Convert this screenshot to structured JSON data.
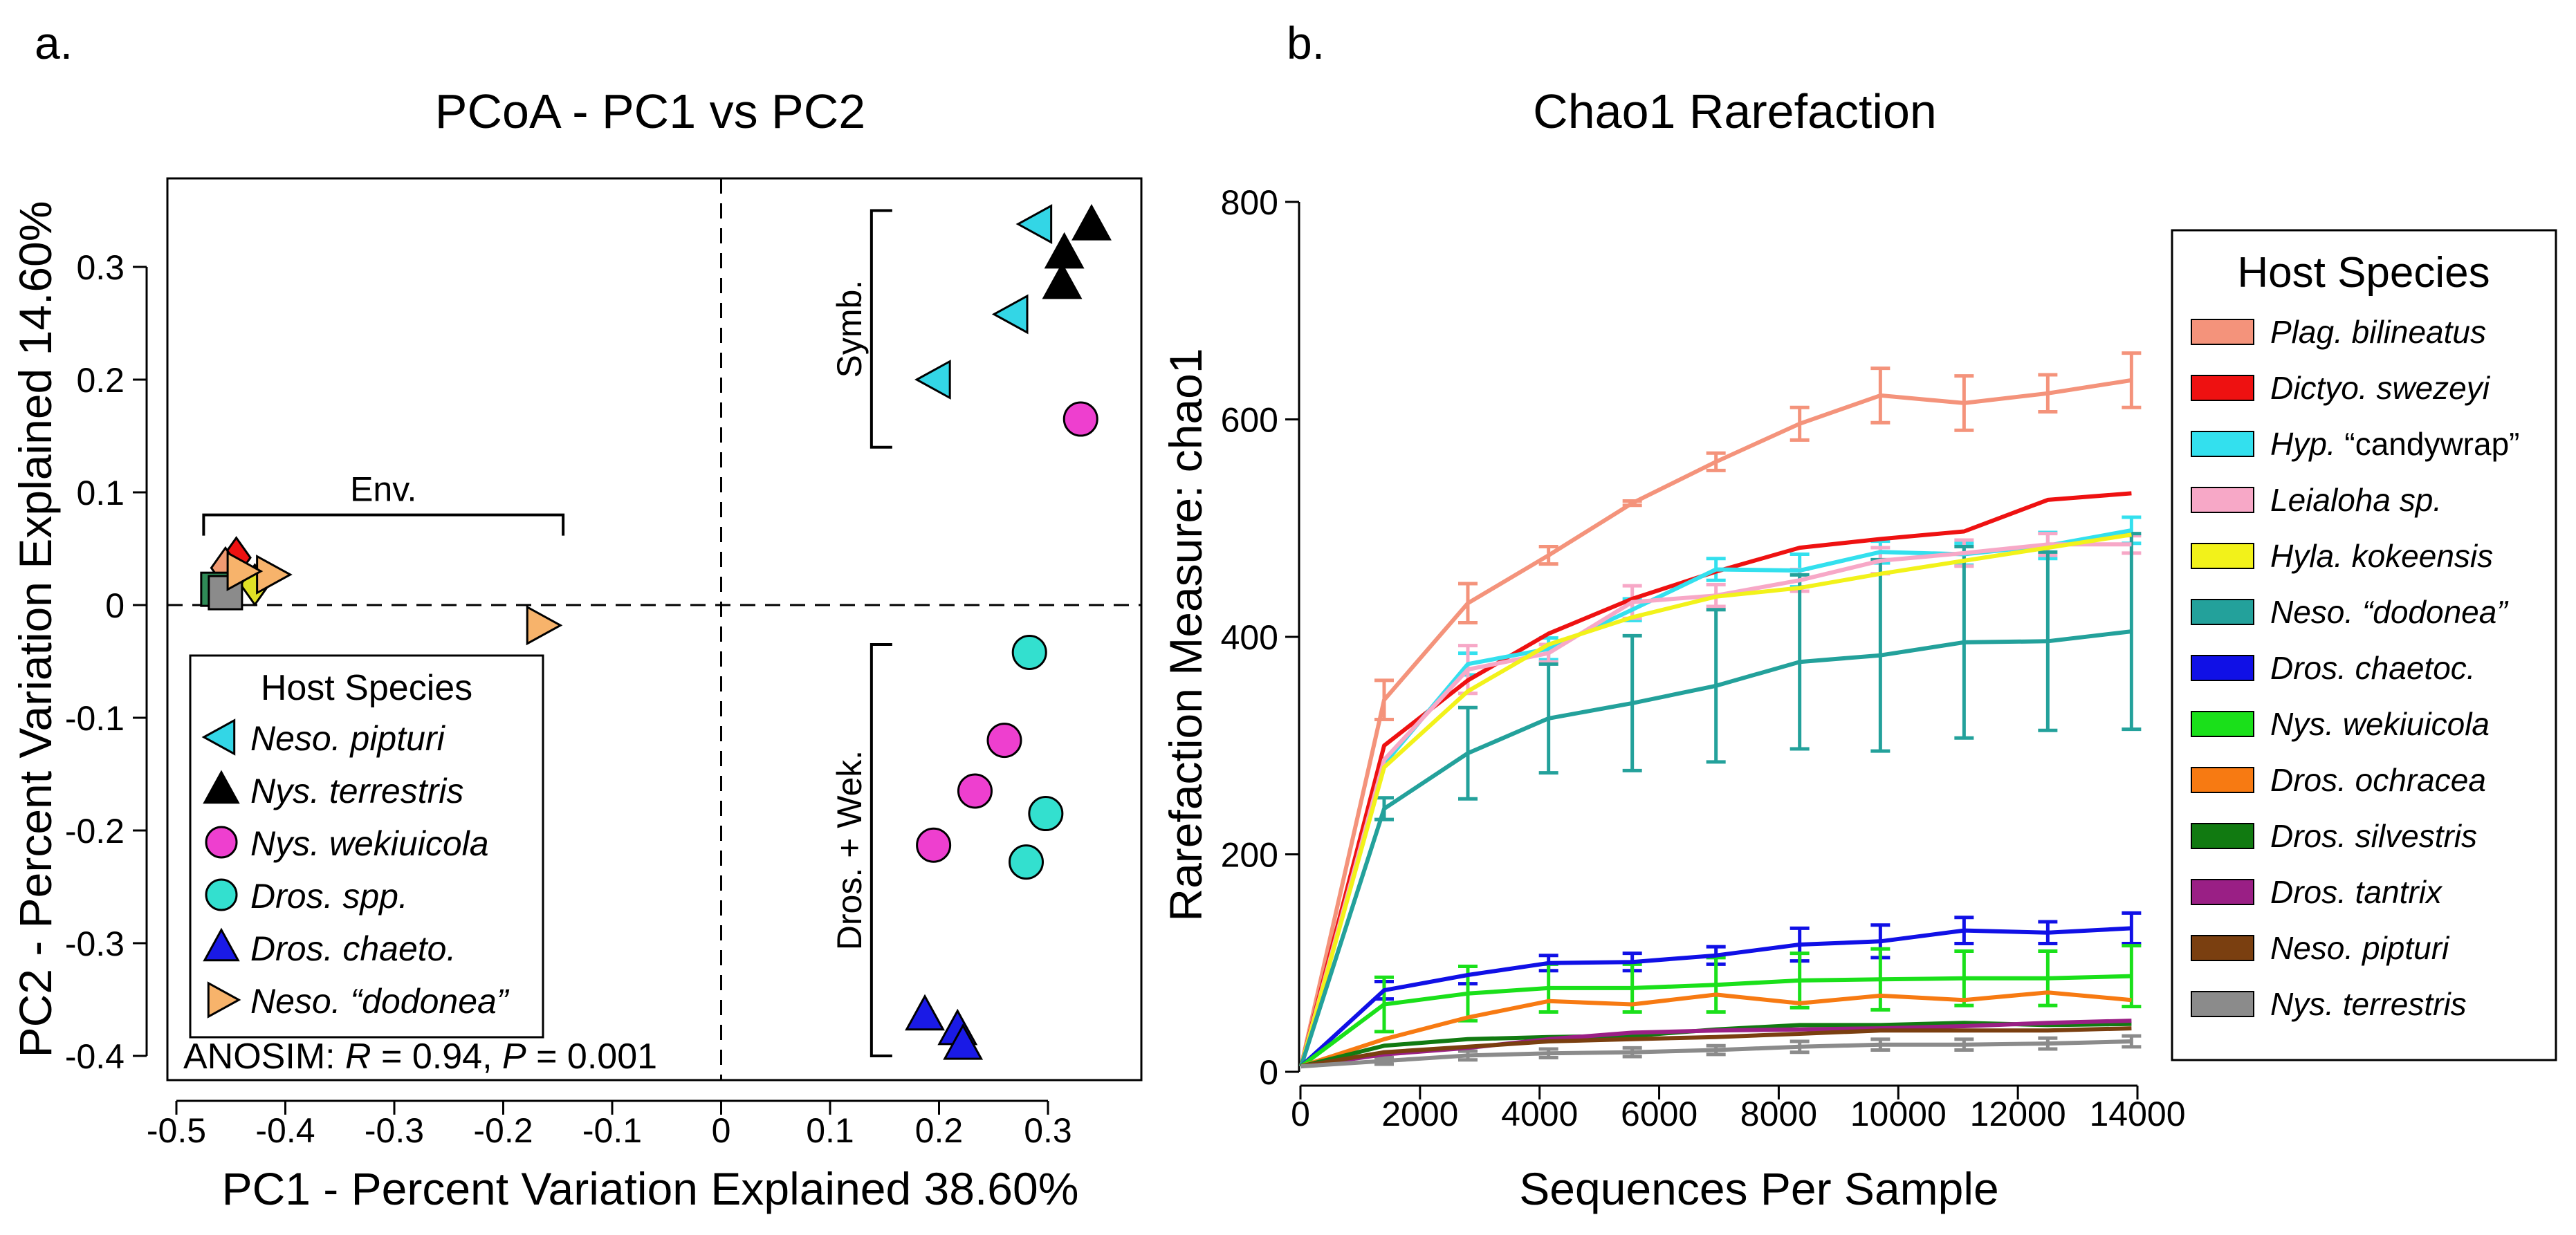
{
  "panels": {
    "a": {
      "letter": "a."
    },
    "b": {
      "letter": "b."
    }
  },
  "chart_data": [
    {
      "type": "scatter",
      "title": "PCoA - PC1 vs PC2",
      "xlabel": "PC1 - Percent Variation Explained 38.60%",
      "ylabel": "PC2 - Percent Variation Explained 14.60%",
      "xlim": [
        -0.5,
        0.38
      ],
      "ylim": [
        -0.41,
        0.37
      ],
      "xticks": [
        -0.5,
        -0.4,
        -0.3,
        -0.2,
        -0.1,
        0,
        0.1,
        0.2,
        0.3
      ],
      "xtick_labels": [
        "-0.5",
        "-0.4",
        "-0.3",
        "-0.2",
        "-0.1",
        "0",
        "0.1",
        "0.2",
        "0.3"
      ],
      "yticks": [
        -0.4,
        -0.3,
        -0.2,
        -0.1,
        0,
        0.1,
        0.2,
        0.3
      ],
      "ytick_labels": [
        "-0.4",
        "-0.3",
        "-0.2",
        "-0.1",
        "0",
        "0.1",
        "0.2",
        "0.3"
      ],
      "reference_lines": {
        "x": 0,
        "y": 0,
        "style": "dashed"
      },
      "brackets": [
        {
          "label": "Env.",
          "orientation": "horizontal",
          "from": -0.475,
          "to": -0.145,
          "at": 0.08
        },
        {
          "label": "Symb.",
          "orientation": "vertical",
          "from": 0.14,
          "to": 0.35,
          "at": 0.138
        },
        {
          "label": "Dros. + Wek.",
          "orientation": "vertical",
          "from": -0.4,
          "to": -0.035,
          "at": 0.138
        }
      ],
      "legend": {
        "title": "Host Species",
        "placement": "bottom-left"
      },
      "series": [
        {
          "name": "Neso. pipturi",
          "marker": "triangle-left",
          "color": "#33d6e6",
          "x": [
            0.29,
            0.268,
            0.197
          ],
          "y": [
            0.338,
            0.258,
            0.2
          ]
        },
        {
          "name": "Nys. terrestris",
          "marker": "triangle-up",
          "color": "#000000",
          "x": [
            0.34,
            0.315,
            0.313
          ],
          "y": [
            0.337,
            0.312,
            0.285
          ]
        },
        {
          "name": "Nys. wekiuicola",
          "marker": "circle",
          "color": "#ee3fcf",
          "x": [
            0.33,
            0.26,
            0.233,
            0.195
          ],
          "y": [
            0.165,
            -0.12,
            -0.165,
            -0.213
          ]
        },
        {
          "name": "Dros. spp.",
          "marker": "circle",
          "color": "#33e0cf",
          "x": [
            0.283,
            0.298,
            0.28
          ],
          "y": [
            -0.042,
            -0.185,
            -0.228
          ]
        },
        {
          "name": "Dros. chaeto.",
          "marker": "triangle-up",
          "color": "#1a1ae6",
          "x": [
            0.187,
            0.217,
            0.222
          ],
          "y": [
            -0.364,
            -0.377,
            -0.39
          ]
        },
        {
          "name": "Neso. “dodonea”",
          "marker": "triangle-right",
          "color": "#f7b36b",
          "x": [
            -0.165,
            -0.413,
            -0.44
          ],
          "y": [
            -0.018,
            0.027,
            0.03
          ]
        }
      ],
      "env_cluster": [
        {
          "marker": "diamond",
          "color": "#ee1111",
          "x": -0.445,
          "y": 0.042
        },
        {
          "marker": "diamond",
          "color": "#f09a72",
          "x": -0.455,
          "y": 0.033
        },
        {
          "marker": "diamond",
          "color": "#e0e026",
          "x": -0.428,
          "y": 0.018
        },
        {
          "marker": "square",
          "color": "#2f8b57",
          "x": -0.462,
          "y": 0.014
        },
        {
          "marker": "square",
          "color": "#8b8b8b",
          "x": -0.455,
          "y": 0.011
        }
      ],
      "annotation": {
        "prefix": "ANOSIM: ",
        "r_label": "R",
        "r_text": " = 0.94, ",
        "p_label": "P",
        "p_text": " = 0.001"
      }
    },
    {
      "type": "line",
      "title": "Chao1 Rarefaction",
      "xlabel": "Sequences Per Sample",
      "ylabel": "Rarefaction Measure: chao1",
      "xlim": [
        0,
        14000
      ],
      "ylim": [
        0,
        800
      ],
      "xticks": [
        0,
        2000,
        4000,
        6000,
        8000,
        10000,
        12000,
        14000
      ],
      "xtick_labels": [
        "0",
        "2000",
        "4000",
        "6000",
        "8000",
        "10000",
        "12000",
        "14000"
      ],
      "yticks": [
        0,
        200,
        400,
        600,
        800
      ],
      "ytick_labels": [
        "0",
        "200",
        "400",
        "600",
        "800"
      ],
      "x": [
        10,
        1400,
        2800,
        4150,
        5550,
        6950,
        8350,
        9700,
        11100,
        12500,
        13900
      ],
      "legend": {
        "title": "Host Species",
        "placement": "right"
      },
      "series": [
        {
          "name": "Plag. bilineatus",
          "prefix": "Plag.",
          "suffix": " bilineatus",
          "italic_suffix": true,
          "color": "#f4937b",
          "values": [
            5,
            342,
            431,
            475,
            523,
            561,
            596,
            622,
            615,
            624,
            636
          ],
          "err": [
            0,
            18,
            18,
            8,
            2,
            8,
            15,
            25,
            25,
            17,
            25
          ]
        },
        {
          "name": "Dictyo. swezeyi",
          "prefix": "Dictyo.",
          "suffix": " swezeyi",
          "italic_suffix": true,
          "color": "#ee1111",
          "values": [
            5,
            300,
            360,
            403,
            435,
            460,
            482,
            490,
            497,
            526,
            532
          ],
          "err": null
        },
        {
          "name": "Hyp. “candywrap”",
          "prefix": "Hyp.",
          "suffix": " “candywrap”",
          "italic_suffix": false,
          "color": "#33e0ee",
          "values": [
            5,
            283,
            375,
            389,
            425,
            462,
            461,
            478,
            476,
            484,
            498
          ],
          "err": [
            0,
            0,
            10,
            10,
            10,
            10,
            15,
            10,
            10,
            12,
            12
          ]
        },
        {
          "name": "Leialoha sp.",
          "prefix": "Leialoha",
          "suffix": " sp.",
          "italic_suffix": true,
          "color": "#f7a8c7",
          "values": [
            5,
            287,
            370,
            385,
            432,
            438,
            452,
            470,
            477,
            485,
            485
          ],
          "err": [
            0,
            0,
            22,
            8,
            15,
            10,
            10,
            12,
            12,
            10,
            8
          ]
        },
        {
          "name": "Hyla. kokeensis",
          "prefix": "Hyla.",
          "suffix": " kokeensis",
          "italic_suffix": true,
          "color": "#f2f21a",
          "values": [
            5,
            280,
            350,
            393,
            418,
            437,
            445,
            458,
            470,
            482,
            494
          ],
          "err": null
        },
        {
          "name": "Neso. “dodonea”",
          "prefix": "Neso.",
          "suffix": " “dodonea”",
          "italic_suffix": true,
          "color": "#23a19b",
          "values": [
            5,
            242,
            293,
            325,
            339,
            355,
            377,
            383,
            395,
            396,
            405
          ],
          "err": [
            0,
            10,
            42,
            50,
            62,
            70,
            80,
            88,
            88,
            82,
            90
          ]
        },
        {
          "name": "Dros. chaetoc.",
          "prefix": "Dros.",
          "suffix": " chaetoc.",
          "italic_suffix": true,
          "color": "#1010e6",
          "values": [
            5,
            75,
            89,
            100,
            101,
            107,
            117,
            120,
            130,
            128,
            132
          ],
          "err": [
            0,
            8,
            8,
            7,
            8,
            8,
            15,
            15,
            12,
            10,
            14
          ]
        },
        {
          "name": "Nys. wekiuicola",
          "prefix": "Nys.",
          "suffix": " wekiuicola",
          "italic_suffix": true,
          "color": "#1ae01a",
          "values": [
            5,
            62,
            72,
            77,
            77,
            80,
            84,
            85,
            86,
            86,
            88
          ],
          "err": [
            0,
            25,
            25,
            22,
            22,
            25,
            25,
            28,
            25,
            25,
            28
          ]
        },
        {
          "name": "Dros. ochracea",
          "prefix": "Dros.",
          "suffix": " ochracea",
          "italic_suffix": true,
          "color": "#f77a12",
          "values": [
            5,
            30,
            50,
            65,
            62,
            71,
            63,
            70,
            66,
            73,
            66
          ],
          "err": null
        },
        {
          "name": "Dros. silvestris",
          "prefix": "Dros.",
          "suffix": " silvestris",
          "italic_suffix": true,
          "color": "#117a11",
          "values": [
            5,
            24,
            30,
            32,
            33,
            39,
            43,
            43,
            45,
            43,
            44
          ],
          "err": null
        },
        {
          "name": "Dros. tantrix",
          "prefix": "Dros.",
          "suffix": " tantrix",
          "italic_suffix": true,
          "color": "#9a1f85",
          "values": [
            5,
            16,
            22,
            30,
            36,
            38,
            39,
            40,
            42,
            45,
            47
          ],
          "err": null
        },
        {
          "name": "Neso. pipturi",
          "prefix": "Neso.",
          "suffix": " pipturi",
          "italic_suffix": true,
          "color": "#7a3f10",
          "values": [
            5,
            18,
            23,
            28,
            30,
            32,
            35,
            38,
            38,
            38,
            40
          ],
          "err": null
        },
        {
          "name": "Nys. terrestris",
          "prefix": "Nys.",
          "suffix": " terrestris",
          "italic_suffix": true,
          "color": "#8b8b8b",
          "values": [
            5,
            10,
            15,
            17,
            18,
            20,
            23,
            25,
            25,
            26,
            28
          ],
          "err": [
            0,
            3,
            4,
            4,
            4,
            4,
            5,
            5,
            5,
            5,
            5
          ]
        }
      ]
    }
  ]
}
